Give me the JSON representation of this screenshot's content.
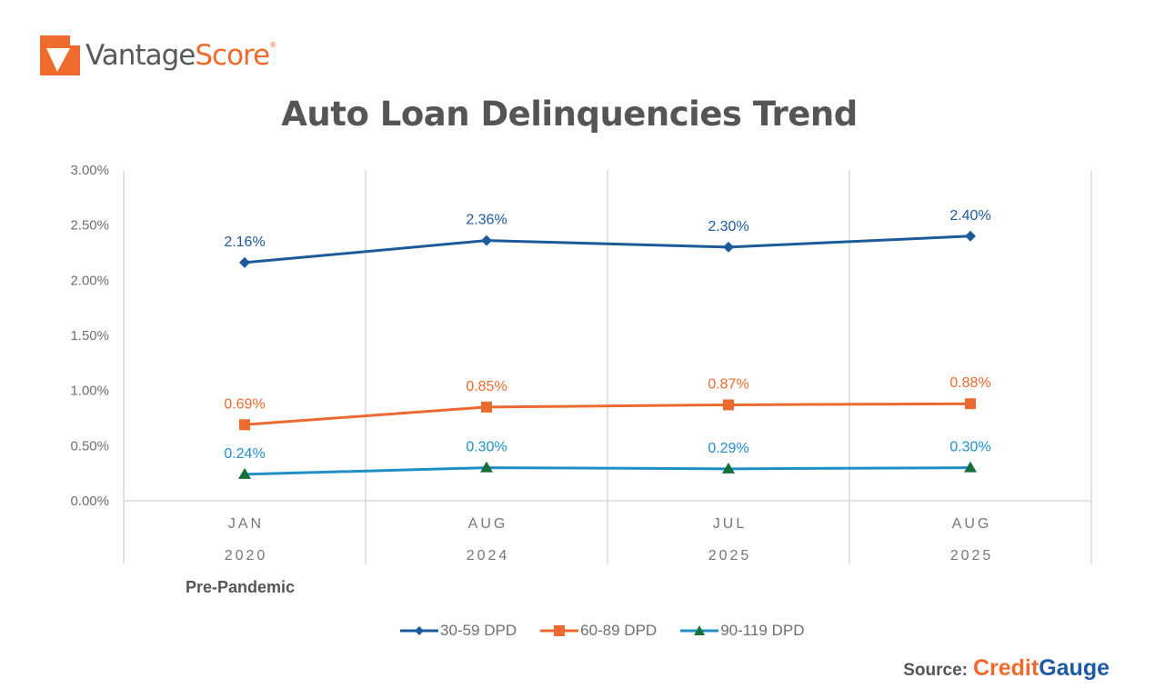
{
  "brand": {
    "logo_icon": "vantagescore-check-mark-icon",
    "name_part1": "Vantage",
    "name_part2": "Score",
    "registered": "®",
    "colors": {
      "orange": "#ef6b2d",
      "gray": "#58595b"
    }
  },
  "header": {
    "title": "Auto Loan Delinquencies Trend"
  },
  "annotation": {
    "pre_pandemic": "Pre-Pandemic"
  },
  "source": {
    "label": "Source:",
    "brand_part1": "Credit",
    "brand_part2": "Gauge"
  },
  "chart_data": {
    "type": "line",
    "title": "Auto Loan Delinquencies Trend",
    "xlabel": "",
    "ylabel": "",
    "categories": [
      "JAN 2020",
      "AUG 2024",
      "JUL 2025",
      "AUG 2025"
    ],
    "category_lines": [
      [
        "JAN",
        "2020"
      ],
      [
        "AUG",
        "2024"
      ],
      [
        "JUL",
        "2025"
      ],
      [
        "AUG",
        "2025"
      ]
    ],
    "category_annotation": {
      "index": 0,
      "text": "Pre-Pandemic"
    },
    "ylim": [
      0,
      3
    ],
    "yticks": [
      "0.00%",
      "0.50%",
      "1.00%",
      "1.50%",
      "2.00%",
      "2.50%",
      "3.00%"
    ],
    "grid": {
      "horizontal": false,
      "vertical_category_dividers": true
    },
    "legend_position": "bottom",
    "series": [
      {
        "name": "30-59 DPD",
        "marker": "diamond",
        "color": "#1c5a9a",
        "values": [
          2.16,
          2.36,
          2.3,
          2.4
        ],
        "labels": [
          "2.16%",
          "2.36%",
          "2.30%",
          "2.40%"
        ]
      },
      {
        "name": "60-89 DPD",
        "marker": "square",
        "color": "#ec6a2f",
        "values": [
          0.69,
          0.85,
          0.87,
          0.88
        ],
        "labels": [
          "0.69%",
          "0.85%",
          "0.87%",
          "0.88%"
        ]
      },
      {
        "name": "90-119 DPD",
        "marker": "triangle",
        "color": "#1f8fc9",
        "marker_color": "#16703a",
        "values": [
          0.24,
          0.3,
          0.29,
          0.3
        ],
        "labels": [
          "0.24%",
          "0.30%",
          "0.29%",
          "0.30%"
        ]
      }
    ]
  }
}
